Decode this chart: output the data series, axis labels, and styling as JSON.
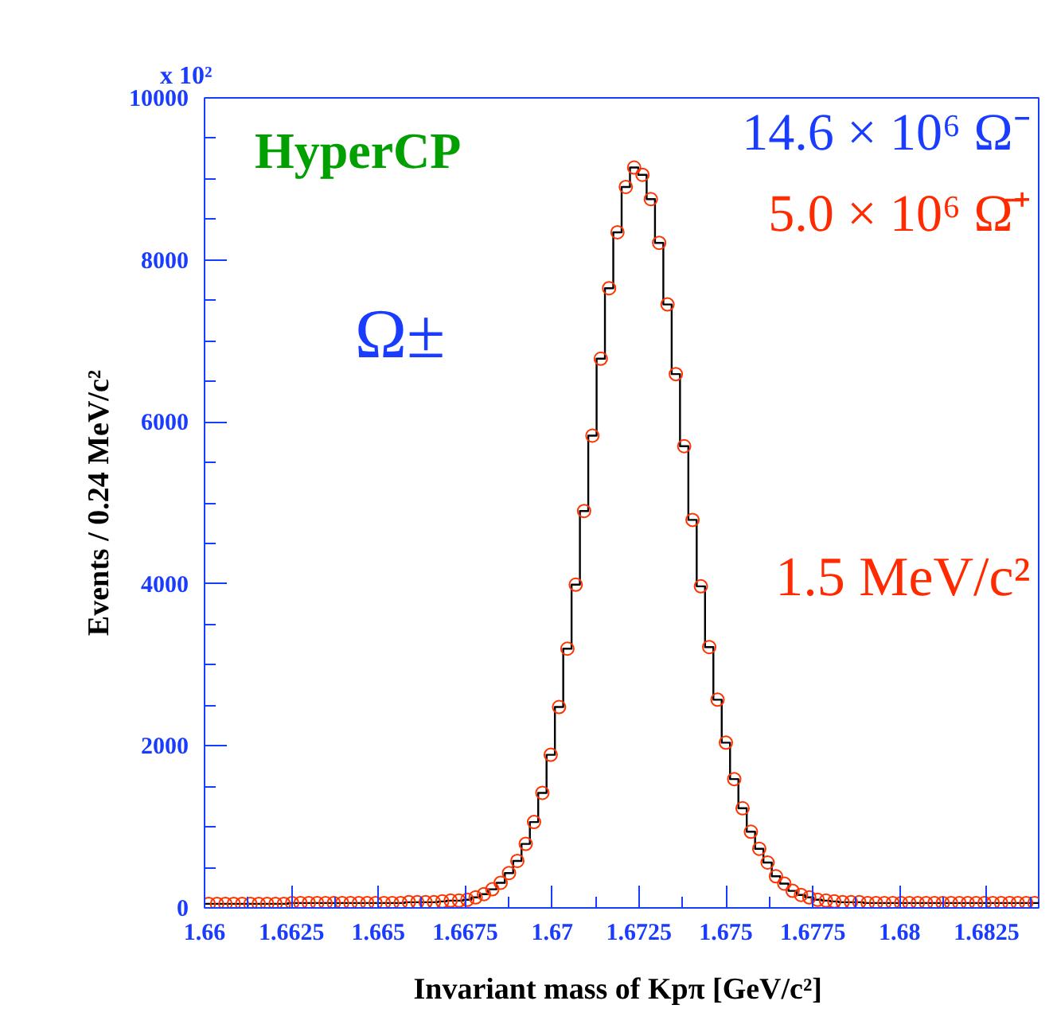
{
  "chart_data": {
    "type": "histogram",
    "xlabel": "Invariant mass of Kpπ  [GeV/c²]",
    "ylabel": "Events / 0.24 MeV/c²",
    "annotations": [
      "x 10²",
      "HyperCP",
      "Ω±",
      "14.6 × 10⁶ Ω⁻",
      "5.0 × 10⁶ Ω̄⁺",
      "1.5 MeV/c²"
    ],
    "bins": [
      1.66,
      1.66024,
      1.66048,
      1.66072,
      1.66096,
      1.6612,
      1.66144,
      1.66168,
      1.66192,
      1.66216,
      1.6624,
      1.66264,
      1.66288,
      1.66312,
      1.66336,
      1.6636,
      1.66384,
      1.66408,
      1.66432,
      1.66456,
      1.6648,
      1.66504,
      1.66528,
      1.66552,
      1.66576,
      1.666,
      1.66624,
      1.66648,
      1.66672,
      1.66696,
      1.6672,
      1.66744,
      1.66768,
      1.66792,
      1.66816,
      1.6684,
      1.66864,
      1.66888,
      1.66912,
      1.66936,
      1.6696,
      1.66984,
      1.67008,
      1.67032,
      1.67056,
      1.6708,
      1.67104,
      1.67128,
      1.67152,
      1.67176,
      1.672,
      1.67224,
      1.67248,
      1.67272,
      1.67296,
      1.6732,
      1.67344,
      1.67368,
      1.67392,
      1.67416,
      1.6744,
      1.67464,
      1.67488,
      1.67512,
      1.67536,
      1.6756,
      1.67584,
      1.67608,
      1.67632,
      1.67656,
      1.6768,
      1.67704,
      1.67728,
      1.67752,
      1.67776,
      1.678,
      1.67824,
      1.67848,
      1.67872,
      1.67896,
      1.6792,
      1.67944,
      1.67968,
      1.67992,
      1.68016,
      1.6804,
      1.68064,
      1.68088,
      1.68112,
      1.68136,
      1.6816,
      1.68184,
      1.68208,
      1.68232,
      1.68256,
      1.6828,
      1.68304,
      1.68328,
      1.68352,
      1.68376,
      1.684
    ],
    "series": [
      {
        "color": "#000000",
        "values": [
          50,
          50,
          50,
          50,
          50,
          50,
          50,
          50,
          50,
          50,
          60,
          60,
          60,
          60,
          60,
          60,
          60,
          60,
          60,
          60,
          60,
          60,
          60,
          60,
          70,
          70,
          70,
          70,
          80,
          90,
          90,
          100,
          130,
          170,
          230,
          310,
          430,
          580,
          790,
          1060,
          1420,
          1890,
          2480,
          3200,
          3990,
          4900,
          5830,
          6780,
          7650,
          8340,
          8900,
          9140,
          9050,
          8750,
          8210,
          7450,
          6590,
          5700,
          4790,
          3970,
          3220,
          2570,
          2040,
          1590,
          1230,
          940,
          730,
          560,
          390,
          300,
          210,
          160,
          130,
          100,
          90,
          80,
          70,
          70,
          70,
          60,
          60,
          60,
          60,
          60,
          60,
          60,
          60,
          60,
          60,
          60,
          60,
          60,
          60,
          60,
          60,
          60,
          60,
          60,
          60,
          60
        ]
      },
      {
        "type": "scatter",
        "color": "#ff3300",
        "marker": "circle",
        "x": [
          1.66012,
          1.66036,
          1.6606,
          1.66084,
          1.66108,
          1.66132,
          1.66156,
          1.6618,
          1.66204,
          1.66228,
          1.66252,
          1.66276,
          1.663,
          1.66324,
          1.66348,
          1.66372,
          1.66396,
          1.6642,
          1.66444,
          1.66468,
          1.66492,
          1.66516,
          1.6654,
          1.66564,
          1.66588,
          1.66612,
          1.66636,
          1.6666,
          1.66684,
          1.66708,
          1.66732,
          1.66756,
          1.6678,
          1.66804,
          1.66828,
          1.66852,
          1.66876,
          1.669,
          1.66924,
          1.66948,
          1.66972,
          1.66996,
          1.6702,
          1.67044,
          1.67068,
          1.67092,
          1.67116,
          1.6714,
          1.67164,
          1.67188,
          1.67212,
          1.67236,
          1.6726,
          1.67284,
          1.67308,
          1.67332,
          1.67356,
          1.6738,
          1.67404,
          1.67428,
          1.67452,
          1.67476,
          1.675,
          1.67524,
          1.67548,
          1.67572,
          1.67596,
          1.6762,
          1.67644,
          1.67668,
          1.67692,
          1.67716,
          1.6774,
          1.67764,
          1.67788,
          1.67812,
          1.67836,
          1.6786,
          1.67884,
          1.67908,
          1.67932,
          1.67956,
          1.6798,
          1.68004,
          1.68028,
          1.68052,
          1.68076,
          1.681,
          1.68124,
          1.68148,
          1.68172,
          1.68196,
          1.6822,
          1.68244,
          1.68268,
          1.68292,
          1.68316,
          1.6834,
          1.68364,
          1.68388
        ],
        "values": [
          50,
          50,
          50,
          50,
          50,
          50,
          50,
          50,
          50,
          50,
          60,
          60,
          60,
          60,
          60,
          60,
          60,
          60,
          60,
          60,
          60,
          60,
          60,
          60,
          70,
          70,
          70,
          70,
          80,
          90,
          90,
          100,
          130,
          170,
          230,
          310,
          430,
          580,
          790,
          1060,
          1420,
          1890,
          2480,
          3200,
          3990,
          4900,
          5830,
          6780,
          7650,
          8340,
          8900,
          9140,
          9050,
          8750,
          8210,
          7450,
          6590,
          5700,
          4790,
          3970,
          3220,
          2570,
          2040,
          1590,
          1230,
          940,
          730,
          560,
          390,
          300,
          210,
          160,
          130,
          100,
          90,
          80,
          70,
          70,
          70,
          60,
          60,
          60,
          60,
          60,
          60,
          60,
          60,
          60,
          60,
          60,
          60,
          60,
          60,
          60,
          60,
          60,
          60,
          60,
          60,
          60
        ]
      }
    ],
    "xlim": [
      1.66,
      1.684
    ],
    "xticks": [
      1.66,
      {
        "value": 1.66125,
        "label": null
      },
      1.6625,
      {
        "value": 1.66375,
        "label": null
      },
      1.665,
      {
        "value": 1.66625,
        "label": null
      },
      1.6675,
      {
        "value": 1.66875,
        "label": null
      },
      1.67,
      {
        "value": 1.67125,
        "label": null
      },
      1.6725,
      {
        "value": 1.67375,
        "label": null
      },
      1.675,
      {
        "value": 1.67625,
        "label": null
      },
      1.6775,
      {
        "value": 1.67875,
        "label": null
      },
      1.68,
      {
        "value": 1.68125,
        "label": null
      },
      1.6825,
      {
        "value": 1.68375,
        "label": null
      }
    ],
    "ylim": [
      0,
      10000
    ],
    "yticks": [
      0,
      {
        "value": 500,
        "label": null
      },
      {
        "value": 1000,
        "label": null
      },
      {
        "value": 1500,
        "label": null
      },
      2000,
      {
        "value": 2500,
        "label": null
      },
      {
        "value": 3000,
        "label": null
      },
      {
        "value": 3500,
        "label": null
      },
      4000,
      {
        "value": 4500,
        "label": null
      },
      {
        "value": 5000,
        "label": null
      },
      {
        "value": 5500,
        "label": null
      },
      6000,
      {
        "value": 6500,
        "label": null
      },
      {
        "value": 7000,
        "label": null
      },
      {
        "value": 7500,
        "label": null
      },
      8000,
      {
        "value": 8500,
        "label": null
      },
      {
        "value": 9000,
        "label": null
      },
      {
        "value": 9500,
        "label": null
      },
      10000
    ],
    "grid": false
  }
}
